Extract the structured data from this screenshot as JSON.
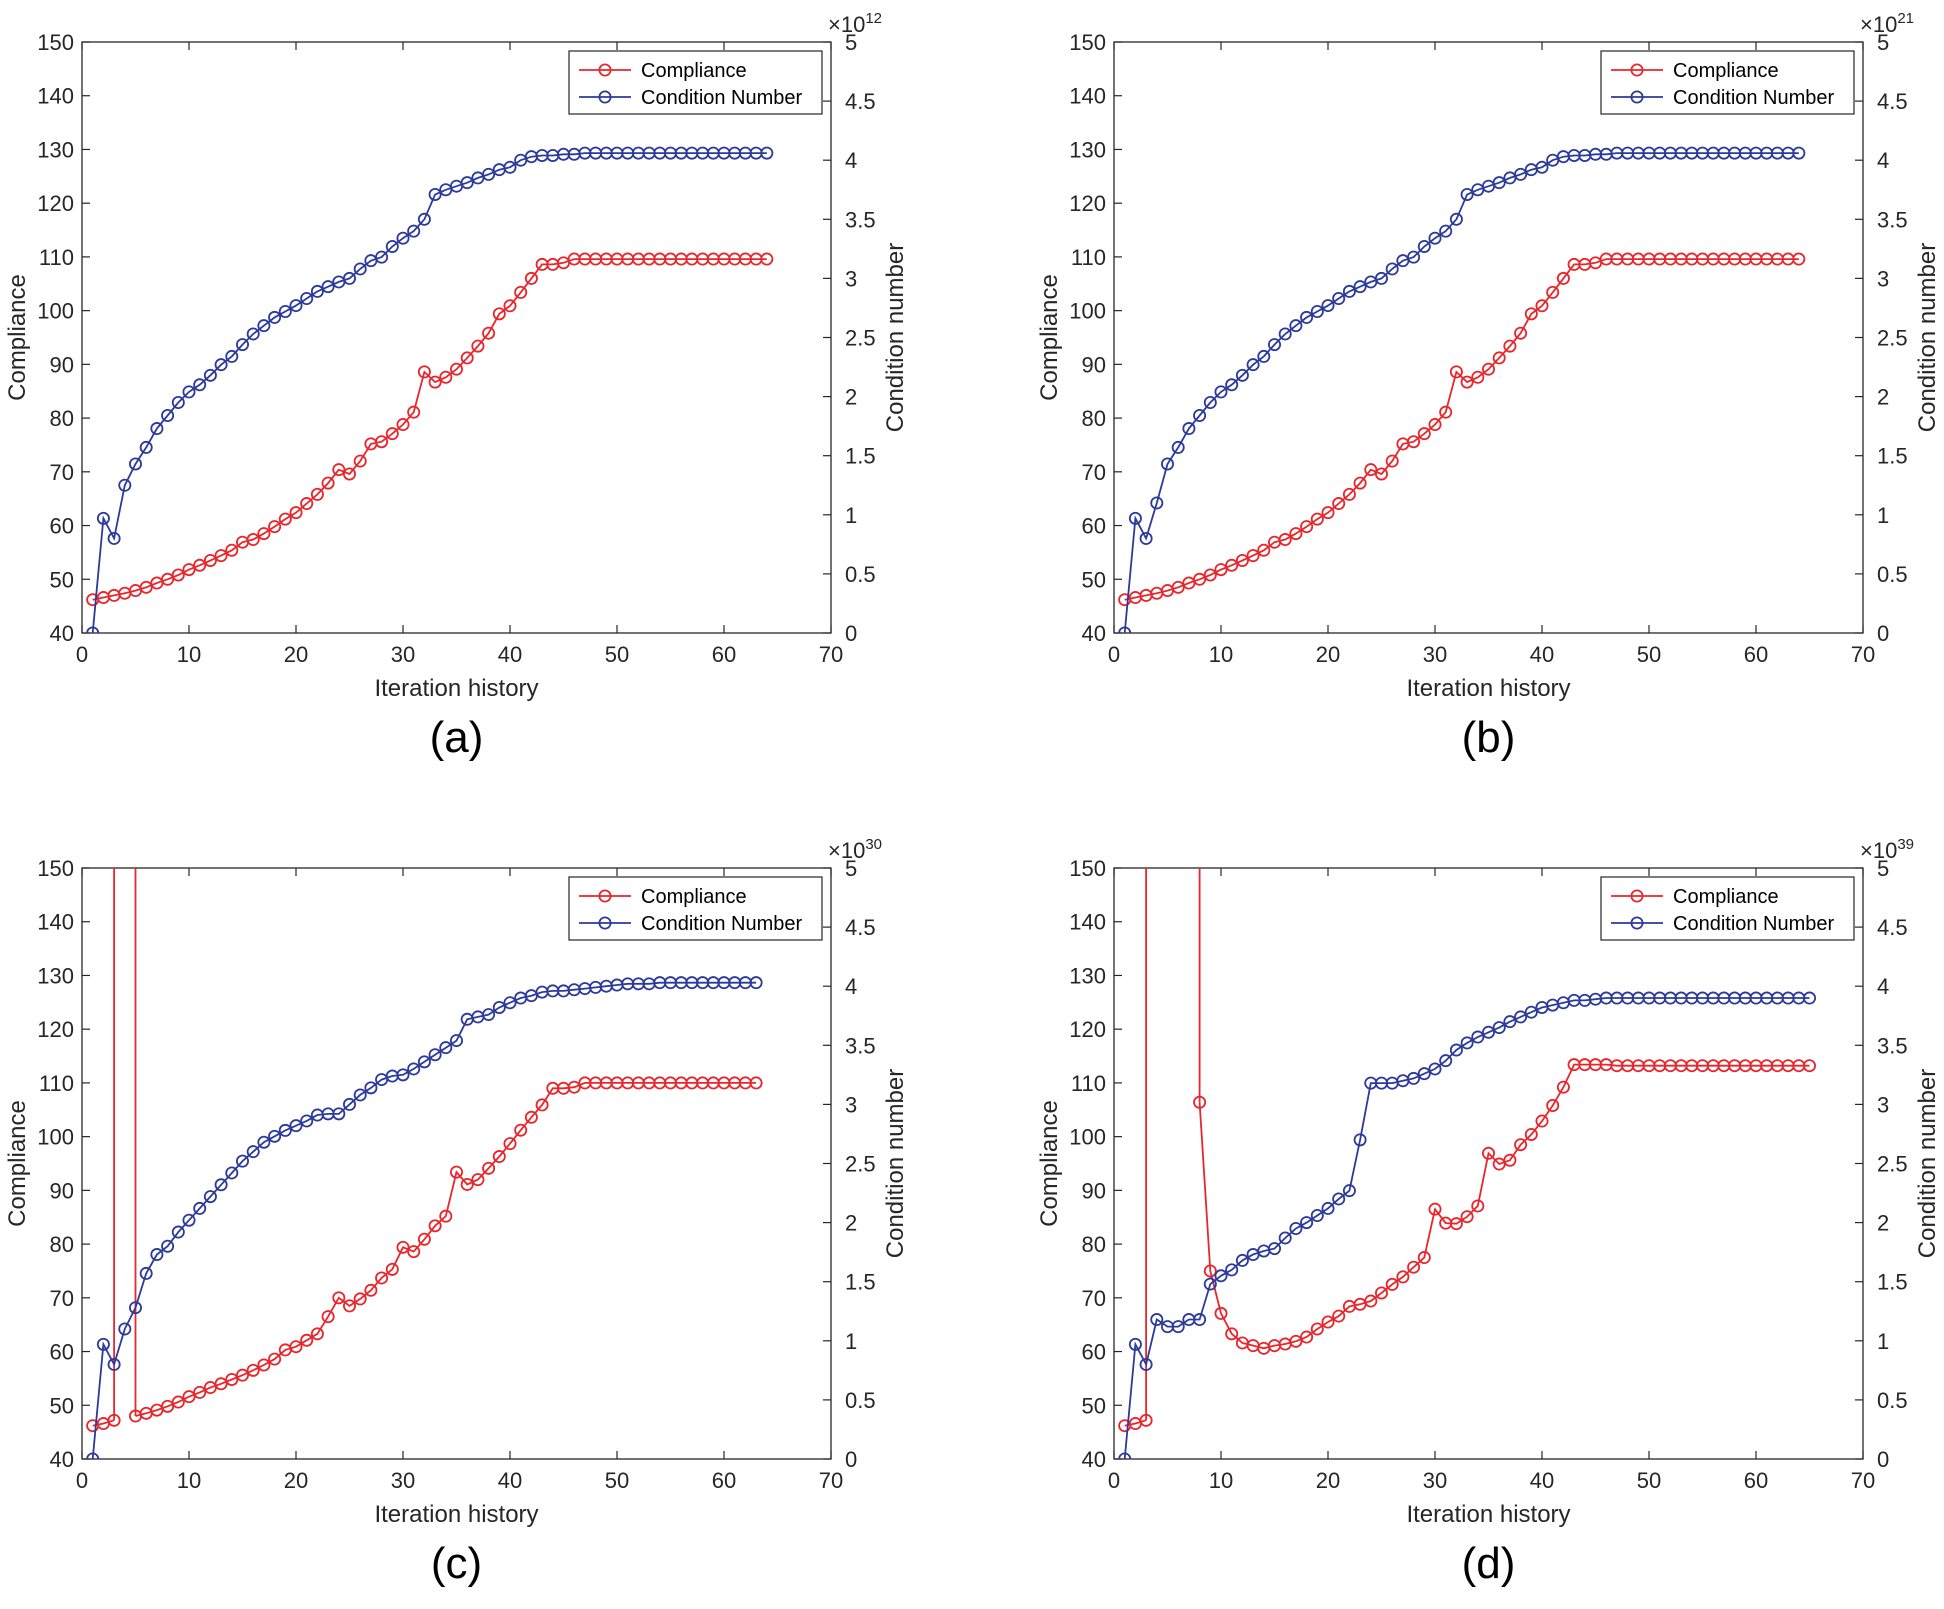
{
  "chart_data": [
    {
      "type": "line",
      "caption": "(a)",
      "xlabel": "Iteration history",
      "ylabel": "Compliance",
      "y2label": "Condition number",
      "xlim": [
        0,
        70
      ],
      "ylim": [
        40,
        150
      ],
      "y2lim": [
        0,
        5
      ],
      "x_ticks": [
        "0",
        "10",
        "20",
        "30",
        "40",
        "50",
        "60",
        "70"
      ],
      "y_ticks": [
        "40",
        "50",
        "60",
        "70",
        "80",
        "90",
        "100",
        "110",
        "120",
        "130",
        "140",
        "150"
      ],
      "y2_ticks": [
        "0",
        "0.5",
        "1",
        "1.5",
        "2",
        "2.5",
        "3",
        "3.5",
        "4",
        "4.5",
        "5"
      ],
      "y2_multiplier": "×10",
      "y2_exponent": "12",
      "legend": {
        "position": "top-right",
        "entries": [
          "Compliance",
          "Condition Number"
        ]
      },
      "series": [
        {
          "name": "Compliance",
          "axis": "left",
          "color": "#e8262c",
          "values": [
            46.2,
            46.6,
            47.0,
            47.4,
            47.9,
            48.5,
            49.3,
            50.0,
            50.8,
            51.8,
            52.6,
            53.5,
            54.4,
            55.4,
            56.9,
            57.4,
            58.5,
            59.8,
            61.2,
            62.4,
            64.1,
            65.8,
            67.9,
            70.4,
            69.6,
            72.0,
            75.2,
            75.6,
            77.1,
            78.8,
            81.1,
            88.6,
            86.7,
            87.6,
            89.1,
            91.2,
            93.4,
            95.8,
            99.4,
            100.9,
            103.4,
            106.0,
            108.6,
            108.6,
            108.9,
            109.6,
            109.6,
            109.6,
            109.6,
            109.6,
            109.6,
            109.6,
            109.6,
            109.6,
            109.6,
            109.6,
            109.6,
            109.6,
            109.6,
            109.6,
            109.6,
            109.6,
            109.6,
            109.6
          ]
        },
        {
          "name": "Condition Number",
          "axis": "right",
          "color": "#2b3a9b",
          "values": [
            0.0,
            0.97,
            0.8,
            1.25,
            1.43,
            1.57,
            1.73,
            1.84,
            1.95,
            2.04,
            2.1,
            2.18,
            2.27,
            2.34,
            2.44,
            2.53,
            2.6,
            2.67,
            2.72,
            2.77,
            2.83,
            2.89,
            2.93,
            2.97,
            3.0,
            3.08,
            3.15,
            3.18,
            3.27,
            3.34,
            3.4,
            3.5,
            3.71,
            3.75,
            3.78,
            3.81,
            3.85,
            3.88,
            3.92,
            3.94,
            4.0,
            4.03,
            4.04,
            4.04,
            4.05,
            4.05,
            4.06,
            4.06,
            4.06,
            4.06,
            4.06,
            4.06,
            4.06,
            4.06,
            4.06,
            4.06,
            4.06,
            4.06,
            4.06,
            4.06,
            4.06,
            4.06,
            4.06,
            4.06
          ]
        }
      ]
    },
    {
      "type": "line",
      "caption": "(b)",
      "xlabel": "Iteration history",
      "ylabel": "Compliance",
      "y2label": "Condition number",
      "xlim": [
        0,
        70
      ],
      "ylim": [
        40,
        150
      ],
      "y2lim": [
        0,
        5
      ],
      "x_ticks": [
        "0",
        "10",
        "20",
        "30",
        "40",
        "50",
        "60",
        "70"
      ],
      "y_ticks": [
        "40",
        "50",
        "60",
        "70",
        "80",
        "90",
        "100",
        "110",
        "120",
        "130",
        "140",
        "150"
      ],
      "y2_ticks": [
        "0",
        "0.5",
        "1",
        "1.5",
        "2",
        "2.5",
        "3",
        "3.5",
        "4",
        "4.5",
        "5"
      ],
      "y2_multiplier": "×10",
      "y2_exponent": "21",
      "legend": {
        "position": "top-right",
        "entries": [
          "Compliance",
          "Condition Number"
        ]
      },
      "series": [
        {
          "name": "Compliance",
          "axis": "left",
          "color": "#e8262c",
          "values": [
            46.2,
            46.6,
            47.0,
            47.4,
            47.9,
            48.5,
            49.3,
            50.0,
            50.8,
            51.8,
            52.6,
            53.5,
            54.4,
            55.4,
            56.9,
            57.4,
            58.5,
            59.8,
            61.2,
            62.4,
            64.1,
            65.8,
            67.9,
            70.4,
            69.6,
            72.0,
            75.2,
            75.6,
            77.1,
            78.8,
            81.1,
            88.6,
            86.7,
            87.6,
            89.1,
            91.2,
            93.4,
            95.8,
            99.4,
            100.9,
            103.4,
            106.0,
            108.6,
            108.6,
            108.9,
            109.6,
            109.6,
            109.6,
            109.6,
            109.6,
            109.6,
            109.6,
            109.6,
            109.6,
            109.6,
            109.6,
            109.6,
            109.6,
            109.6,
            109.6,
            109.6,
            109.6,
            109.6,
            109.6
          ]
        },
        {
          "name": "Condition Number",
          "axis": "right",
          "color": "#2b3a9b",
          "values": [
            0.0,
            0.97,
            0.8,
            1.1,
            1.43,
            1.57,
            1.73,
            1.84,
            1.95,
            2.04,
            2.1,
            2.18,
            2.27,
            2.34,
            2.44,
            2.53,
            2.6,
            2.67,
            2.72,
            2.77,
            2.83,
            2.89,
            2.93,
            2.97,
            3.0,
            3.08,
            3.15,
            3.18,
            3.27,
            3.34,
            3.4,
            3.5,
            3.71,
            3.75,
            3.78,
            3.81,
            3.85,
            3.88,
            3.92,
            3.94,
            4.0,
            4.03,
            4.04,
            4.04,
            4.05,
            4.05,
            4.06,
            4.06,
            4.06,
            4.06,
            4.06,
            4.06,
            4.06,
            4.06,
            4.06,
            4.06,
            4.06,
            4.06,
            4.06,
            4.06,
            4.06,
            4.06,
            4.06,
            4.06
          ]
        }
      ]
    },
    {
      "type": "line",
      "caption": "(c)",
      "xlabel": "Iteration history",
      "ylabel": "Compliance",
      "y2label": "Condition number",
      "xlim": [
        0,
        70
      ],
      "ylim": [
        40,
        150
      ],
      "y2lim": [
        0,
        5
      ],
      "x_ticks": [
        "0",
        "10",
        "20",
        "30",
        "40",
        "50",
        "60",
        "70"
      ],
      "y_ticks": [
        "40",
        "50",
        "60",
        "70",
        "80",
        "90",
        "100",
        "110",
        "120",
        "130",
        "140",
        "150"
      ],
      "y2_ticks": [
        "0",
        "0.5",
        "1",
        "1.5",
        "2",
        "2.5",
        "3",
        "3.5",
        "4",
        "4.5",
        "5"
      ],
      "y2_multiplier": "×10",
      "y2_exponent": "30",
      "legend": {
        "position": "top-right",
        "entries": [
          "Compliance",
          "Condition Number"
        ]
      },
      "series": [
        {
          "name": "Compliance",
          "axis": "left",
          "color": "#e8262c",
          "values": [
            46.2,
            46.6,
            47.2,
            null,
            48.0,
            48.5,
            49.1,
            49.8,
            50.6,
            51.6,
            52.4,
            53.3,
            54.0,
            54.8,
            55.6,
            56.5,
            57.5,
            58.6,
            60.3,
            60.9,
            62.1,
            63.3,
            66.5,
            70.0,
            68.5,
            69.8,
            71.4,
            73.7,
            75.3,
            79.4,
            78.6,
            80.9,
            83.4,
            85.2,
            93.4,
            91.1,
            92.0,
            94.1,
            96.3,
            98.7,
            101.2,
            103.6,
            105.9,
            109.0,
            109.0,
            109.2,
            110.0,
            110.0,
            110.0,
            110.0,
            110.0,
            110.0,
            110.0,
            110.0,
            110.0,
            110.0,
            110.0,
            110.0,
            110.0,
            110.0,
            110.0,
            110.0,
            110.0
          ],
          "spikes": [
            {
              "x_from": 3,
              "x_to": 5,
              "note": "values exceed plot range"
            }
          ]
        },
        {
          "name": "Condition Number",
          "axis": "right",
          "color": "#2b3a9b",
          "values": [
            0.0,
            0.97,
            0.8,
            1.1,
            1.28,
            1.57,
            1.73,
            1.8,
            1.92,
            2.02,
            2.12,
            2.22,
            2.32,
            2.42,
            2.52,
            2.6,
            2.68,
            2.73,
            2.78,
            2.82,
            2.86,
            2.91,
            2.92,
            2.92,
            3.0,
            3.08,
            3.14,
            3.21,
            3.24,
            3.25,
            3.3,
            3.36,
            3.42,
            3.48,
            3.54,
            3.72,
            3.74,
            3.76,
            3.82,
            3.86,
            3.9,
            3.92,
            3.95,
            3.96,
            3.96,
            3.97,
            3.98,
            3.99,
            4.0,
            4.01,
            4.02,
            4.02,
            4.02,
            4.03,
            4.03,
            4.03,
            4.03,
            4.03,
            4.03,
            4.03,
            4.03,
            4.03,
            4.03
          ]
        }
      ]
    },
    {
      "type": "line",
      "caption": "(d)",
      "xlabel": "Iteration history",
      "ylabel": "Compliance",
      "y2label": "Condition number",
      "xlim": [
        0,
        70
      ],
      "ylim": [
        40,
        150
      ],
      "y2lim": [
        0,
        5
      ],
      "x_ticks": [
        "0",
        "10",
        "20",
        "30",
        "40",
        "50",
        "60",
        "70"
      ],
      "y_ticks": [
        "40",
        "50",
        "60",
        "70",
        "80",
        "90",
        "100",
        "110",
        "120",
        "130",
        "140",
        "150"
      ],
      "y2_ticks": [
        "0",
        "0.5",
        "1",
        "1.5",
        "2",
        "2.5",
        "3",
        "3.5",
        "4",
        "4.5",
        "5"
      ],
      "y2_multiplier": "×10",
      "y2_exponent": "39",
      "legend": {
        "position": "top-right",
        "entries": [
          "Compliance",
          "Condition Number"
        ]
      },
      "series": [
        {
          "name": "Compliance",
          "axis": "left",
          "color": "#e8262c",
          "values": [
            46.2,
            46.6,
            47.2,
            null,
            null,
            null,
            null,
            106.4,
            75.0,
            67.1,
            63.3,
            61.6,
            61.1,
            60.6,
            61.1,
            61.4,
            61.9,
            62.7,
            64.2,
            65.5,
            66.6,
            68.4,
            68.8,
            69.4,
            70.9,
            72.5,
            73.9,
            75.7,
            77.5,
            86.5,
            83.9,
            83.8,
            85.1,
            87.1,
            96.9,
            94.9,
            95.6,
            98.5,
            100.4,
            102.9,
            105.8,
            109.2,
            113.4,
            113.4,
            113.4,
            113.4,
            113.2,
            113.2,
            113.2,
            113.2,
            113.2,
            113.2,
            113.2,
            113.2,
            113.2,
            113.2,
            113.2,
            113.2,
            113.2,
            113.2,
            113.2,
            113.2,
            113.2,
            113.2,
            113.2
          ],
          "spikes": [
            {
              "x_from": 3,
              "x_to": 8,
              "note": "values exceed plot range"
            }
          ]
        },
        {
          "name": "Condition Number",
          "axis": "right",
          "color": "#2b3a9b",
          "values": [
            0.0,
            0.97,
            0.8,
            1.18,
            1.12,
            1.12,
            1.18,
            1.18,
            1.48,
            1.55,
            1.6,
            1.68,
            1.73,
            1.76,
            1.78,
            1.87,
            1.95,
            2.0,
            2.06,
            2.12,
            2.2,
            2.27,
            2.7,
            3.18,
            3.18,
            3.18,
            3.2,
            3.22,
            3.26,
            3.3,
            3.37,
            3.46,
            3.52,
            3.57,
            3.61,
            3.65,
            3.7,
            3.74,
            3.78,
            3.82,
            3.84,
            3.86,
            3.88,
            3.88,
            3.89,
            3.9,
            3.9,
            3.9,
            3.9,
            3.9,
            3.9,
            3.9,
            3.9,
            3.9,
            3.9,
            3.9,
            3.9,
            3.9,
            3.9,
            3.9,
            3.9,
            3.9,
            3.9,
            3.9,
            3.9
          ]
        }
      ]
    }
  ]
}
